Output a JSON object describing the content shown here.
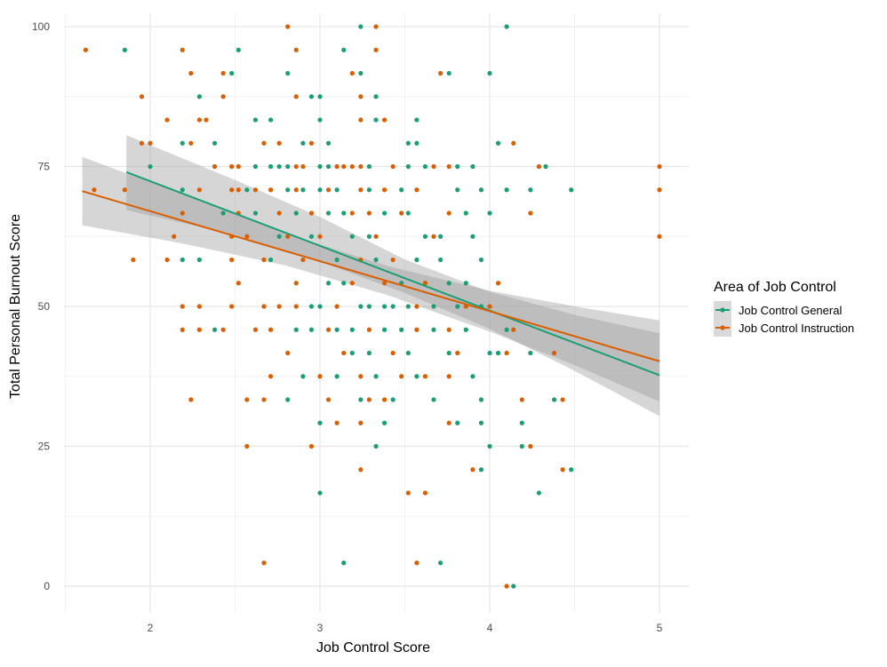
{
  "chart_data": {
    "type": "scatter",
    "xlabel": "Job Control Score",
    "ylabel": "Total Personal Burnout Score",
    "xlim": [
      1.5,
      5.15
    ],
    "ylim": [
      -4,
      103
    ],
    "x_ticks": [
      "2",
      "3",
      "4",
      "5"
    ],
    "x_tick_values": [
      2,
      3,
      4,
      5
    ],
    "y_ticks": [
      "0",
      "25",
      "50",
      "75",
      "100"
    ],
    "y_tick_values": [
      0,
      25,
      50,
      75,
      100
    ],
    "grid": true,
    "legend": {
      "title": "Area of Job Control",
      "placement": "right"
    },
    "series": [
      {
        "name": "Job Control General",
        "color": "#1b9e77",
        "points": [
          [
            3.24,
            100
          ],
          [
            4.1,
            100
          ],
          [
            1.85,
            95.83
          ],
          [
            2.52,
            95.83
          ],
          [
            3.14,
            95.83
          ],
          [
            2.48,
            91.67
          ],
          [
            2.81,
            91.67
          ],
          [
            3.24,
            91.67
          ],
          [
            3.76,
            91.67
          ],
          [
            4.0,
            91.67
          ],
          [
            2.29,
            87.5
          ],
          [
            2.95,
            87.5
          ],
          [
            3.0,
            87.5
          ],
          [
            3.33,
            87.5
          ],
          [
            2.62,
            83.33
          ],
          [
            2.71,
            83.33
          ],
          [
            3.0,
            83.33
          ],
          [
            3.33,
            83.33
          ],
          [
            3.57,
            83.33
          ],
          [
            2.19,
            79.17
          ],
          [
            2.38,
            79.17
          ],
          [
            2.9,
            79.17
          ],
          [
            3.05,
            79.17
          ],
          [
            3.52,
            79.17
          ],
          [
            3.57,
            79.17
          ],
          [
            4.05,
            79.17
          ],
          [
            2.0,
            75
          ],
          [
            2.38,
            75
          ],
          [
            2.62,
            75
          ],
          [
            2.71,
            75
          ],
          [
            2.76,
            75
          ],
          [
            2.81,
            75
          ],
          [
            3.0,
            75
          ],
          [
            3.05,
            75
          ],
          [
            3.29,
            75
          ],
          [
            3.52,
            75
          ],
          [
            3.62,
            75
          ],
          [
            3.81,
            75
          ],
          [
            3.9,
            75
          ],
          [
            4.33,
            75
          ],
          [
            2.19,
            70.83
          ],
          [
            2.57,
            70.83
          ],
          [
            2.81,
            70.83
          ],
          [
            2.9,
            70.83
          ],
          [
            3.0,
            70.83
          ],
          [
            3.1,
            70.83
          ],
          [
            3.29,
            70.83
          ],
          [
            3.48,
            70.83
          ],
          [
            3.81,
            70.83
          ],
          [
            3.95,
            70.83
          ],
          [
            4.1,
            70.83
          ],
          [
            4.24,
            70.83
          ],
          [
            4.48,
            70.83
          ],
          [
            2.43,
            66.67
          ],
          [
            2.62,
            66.67
          ],
          [
            2.86,
            66.67
          ],
          [
            3.05,
            66.67
          ],
          [
            3.14,
            66.67
          ],
          [
            3.38,
            66.67
          ],
          [
            3.52,
            66.67
          ],
          [
            3.86,
            66.67
          ],
          [
            4.0,
            66.67
          ],
          [
            2.76,
            62.5
          ],
          [
            2.95,
            62.5
          ],
          [
            3.19,
            62.5
          ],
          [
            3.29,
            62.5
          ],
          [
            3.62,
            62.5
          ],
          [
            3.71,
            62.5
          ],
          [
            3.9,
            62.5
          ],
          [
            2.19,
            58.33
          ],
          [
            2.29,
            58.33
          ],
          [
            2.71,
            58.33
          ],
          [
            3.1,
            58.33
          ],
          [
            3.33,
            58.33
          ],
          [
            3.57,
            58.33
          ],
          [
            3.71,
            58.33
          ],
          [
            3.95,
            58.33
          ],
          [
            3.05,
            54.17
          ],
          [
            3.14,
            54.17
          ],
          [
            3.48,
            54.17
          ],
          [
            3.62,
            54.17
          ],
          [
            3.76,
            54.17
          ],
          [
            3.86,
            54.17
          ],
          [
            2.95,
            50
          ],
          [
            3.0,
            50
          ],
          [
            3.24,
            50
          ],
          [
            3.29,
            50
          ],
          [
            3.38,
            50
          ],
          [
            3.43,
            50
          ],
          [
            3.52,
            50
          ],
          [
            3.67,
            50
          ],
          [
            3.81,
            50
          ],
          [
            3.95,
            50
          ],
          [
            2.38,
            45.83
          ],
          [
            2.86,
            45.83
          ],
          [
            2.95,
            45.83
          ],
          [
            3.1,
            45.83
          ],
          [
            3.19,
            45.83
          ],
          [
            3.38,
            45.83
          ],
          [
            3.48,
            45.83
          ],
          [
            3.67,
            45.83
          ],
          [
            3.86,
            45.83
          ],
          [
            4.1,
            45.83
          ],
          [
            3.19,
            41.67
          ],
          [
            3.29,
            41.67
          ],
          [
            3.52,
            41.67
          ],
          [
            3.76,
            41.67
          ],
          [
            4.0,
            41.67
          ],
          [
            4.05,
            41.67
          ],
          [
            4.24,
            41.67
          ],
          [
            2.9,
            37.5
          ],
          [
            3.1,
            37.5
          ],
          [
            3.33,
            37.5
          ],
          [
            3.57,
            37.5
          ],
          [
            3.9,
            37.5
          ],
          [
            2.81,
            33.33
          ],
          [
            3.24,
            33.33
          ],
          [
            3.43,
            33.33
          ],
          [
            3.67,
            33.33
          ],
          [
            3.95,
            33.33
          ],
          [
            4.38,
            33.33
          ],
          [
            3.0,
            29.17
          ],
          [
            3.38,
            29.17
          ],
          [
            3.81,
            29.17
          ],
          [
            3.95,
            29.17
          ],
          [
            4.19,
            29.17
          ],
          [
            3.33,
            25
          ],
          [
            4.0,
            25
          ],
          [
            4.19,
            25
          ],
          [
            3.95,
            20.83
          ],
          [
            4.48,
            20.83
          ],
          [
            3.0,
            16.67
          ],
          [
            4.29,
            16.67
          ],
          [
            3.14,
            4.17
          ],
          [
            3.71,
            4.17
          ],
          [
            4.14,
            0
          ]
        ],
        "fit": {
          "x": [
            1.86,
            5.0
          ],
          "y": [
            74.0,
            37.7
          ]
        },
        "ci": {
          "x": [
            1.86,
            2.5,
            3.0,
            3.5,
            4.0,
            4.5,
            5.0
          ],
          "lower": [
            67.2,
            62.8,
            58.0,
            52.4,
            46.0,
            38.5,
            30.4
          ],
          "upper": [
            80.6,
            72.6,
            66.0,
            58.4,
            52.6,
            48.5,
            45.2
          ]
        }
      },
      {
        "name": "Job Control Instruction",
        "color": "#d95f02",
        "points": [
          [
            2.81,
            100
          ],
          [
            3.33,
            100
          ],
          [
            1.62,
            95.83
          ],
          [
            2.19,
            95.83
          ],
          [
            2.86,
            95.83
          ],
          [
            3.33,
            95.83
          ],
          [
            2.24,
            91.67
          ],
          [
            2.43,
            91.67
          ],
          [
            3.19,
            91.67
          ],
          [
            3.71,
            91.67
          ],
          [
            1.95,
            87.5
          ],
          [
            2.43,
            87.5
          ],
          [
            2.86,
            87.5
          ],
          [
            3.24,
            87.5
          ],
          [
            2.1,
            83.33
          ],
          [
            2.29,
            83.33
          ],
          [
            2.33,
            83.33
          ],
          [
            3.24,
            83.33
          ],
          [
            3.38,
            83.33
          ],
          [
            1.95,
            79.17
          ],
          [
            2.0,
            79.17
          ],
          [
            2.24,
            79.17
          ],
          [
            2.67,
            79.17
          ],
          [
            2.76,
            79.17
          ],
          [
            2.95,
            79.17
          ],
          [
            4.14,
            79.17
          ],
          [
            2.38,
            75
          ],
          [
            2.48,
            75
          ],
          [
            2.52,
            75
          ],
          [
            2.86,
            75
          ],
          [
            2.9,
            75
          ],
          [
            3.1,
            75
          ],
          [
            3.14,
            75
          ],
          [
            3.19,
            75
          ],
          [
            3.24,
            75
          ],
          [
            3.43,
            75
          ],
          [
            3.67,
            75
          ],
          [
            3.76,
            75
          ],
          [
            4.29,
            75
          ],
          [
            5.0,
            75
          ],
          [
            1.67,
            70.83
          ],
          [
            1.85,
            70.83
          ],
          [
            2.29,
            70.83
          ],
          [
            2.48,
            70.83
          ],
          [
            2.52,
            70.83
          ],
          [
            2.62,
            70.83
          ],
          [
            2.71,
            70.83
          ],
          [
            2.86,
            70.83
          ],
          [
            3.05,
            70.83
          ],
          [
            3.24,
            70.83
          ],
          [
            3.38,
            70.83
          ],
          [
            3.57,
            70.83
          ],
          [
            5.0,
            70.83
          ],
          [
            2.19,
            66.67
          ],
          [
            2.52,
            66.67
          ],
          [
            2.76,
            66.67
          ],
          [
            2.95,
            66.67
          ],
          [
            3.19,
            66.67
          ],
          [
            3.29,
            66.67
          ],
          [
            3.48,
            66.67
          ],
          [
            3.76,
            66.67
          ],
          [
            4.24,
            66.67
          ],
          [
            2.14,
            62.5
          ],
          [
            2.48,
            62.5
          ],
          [
            2.57,
            62.5
          ],
          [
            2.81,
            62.5
          ],
          [
            3.0,
            62.5
          ],
          [
            3.33,
            62.5
          ],
          [
            3.67,
            62.5
          ],
          [
            5.0,
            62.5
          ],
          [
            1.9,
            58.33
          ],
          [
            2.1,
            58.33
          ],
          [
            2.48,
            58.33
          ],
          [
            2.67,
            58.33
          ],
          [
            2.9,
            58.33
          ],
          [
            3.24,
            58.33
          ],
          [
            3.43,
            58.33
          ],
          [
            2.52,
            54.17
          ],
          [
            2.86,
            54.17
          ],
          [
            3.19,
            54.17
          ],
          [
            3.38,
            54.17
          ],
          [
            3.62,
            54.17
          ],
          [
            4.05,
            54.17
          ],
          [
            2.19,
            50
          ],
          [
            2.29,
            50
          ],
          [
            2.48,
            50
          ],
          [
            2.67,
            50
          ],
          [
            2.76,
            50
          ],
          [
            2.86,
            50
          ],
          [
            3.1,
            50
          ],
          [
            3.57,
            50
          ],
          [
            3.86,
            50
          ],
          [
            4.0,
            50
          ],
          [
            2.19,
            45.83
          ],
          [
            2.29,
            45.83
          ],
          [
            2.43,
            45.83
          ],
          [
            2.62,
            45.83
          ],
          [
            2.71,
            45.83
          ],
          [
            3.05,
            45.83
          ],
          [
            3.29,
            45.83
          ],
          [
            3.57,
            45.83
          ],
          [
            3.76,
            45.83
          ],
          [
            4.14,
            45.83
          ],
          [
            2.81,
            41.67
          ],
          [
            3.14,
            41.67
          ],
          [
            3.43,
            41.67
          ],
          [
            3.81,
            41.67
          ],
          [
            4.1,
            41.67
          ],
          [
            4.38,
            41.67
          ],
          [
            2.71,
            37.5
          ],
          [
            3.0,
            37.5
          ],
          [
            3.24,
            37.5
          ],
          [
            3.48,
            37.5
          ],
          [
            3.62,
            37.5
          ],
          [
            3.76,
            37.5
          ],
          [
            2.24,
            33.33
          ],
          [
            2.57,
            33.33
          ],
          [
            2.67,
            33.33
          ],
          [
            3.05,
            33.33
          ],
          [
            3.29,
            33.33
          ],
          [
            3.38,
            33.33
          ],
          [
            4.19,
            33.33
          ],
          [
            4.43,
            33.33
          ],
          [
            3.1,
            29.17
          ],
          [
            3.24,
            29.17
          ],
          [
            3.76,
            29.17
          ],
          [
            2.57,
            25
          ],
          [
            2.95,
            25
          ],
          [
            4.24,
            25
          ],
          [
            3.24,
            20.83
          ],
          [
            3.9,
            20.83
          ],
          [
            4.43,
            20.83
          ],
          [
            3.52,
            16.67
          ],
          [
            3.62,
            16.67
          ],
          [
            2.67,
            4.17
          ],
          [
            3.57,
            4.17
          ],
          [
            4.1,
            0
          ]
        ],
        "fit": {
          "x": [
            1.6,
            5.0
          ],
          "y": [
            70.6,
            40.2
          ]
        },
        "ci": {
          "x": [
            1.6,
            2.2,
            2.8,
            3.4,
            4.0,
            4.5,
            5.0
          ],
          "lower": [
            64.5,
            61.2,
            57.3,
            52.0,
            45.5,
            39.5,
            33.0
          ],
          "upper": [
            76.7,
            70.0,
            63.0,
            57.2,
            52.8,
            50.0,
            47.5
          ]
        }
      }
    ]
  }
}
